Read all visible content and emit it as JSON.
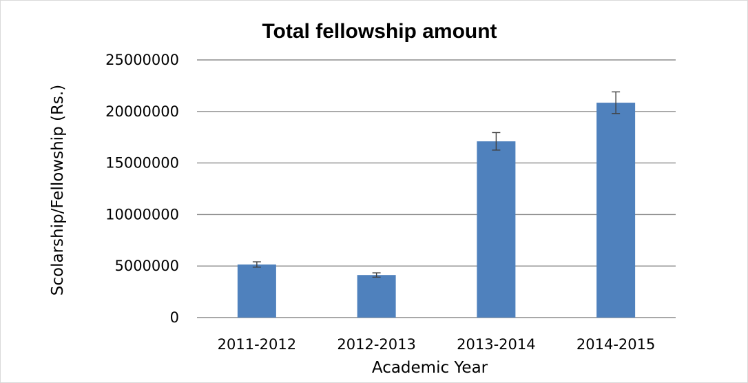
{
  "chart_data": {
    "type": "bar",
    "title": "Total fellowship amount",
    "xlabel": "Academic Year",
    "ylabel": "Scolarship/Fellowship (Rs.)",
    "categories": [
      "2011-2012",
      "2012-2013",
      "2013-2014",
      "2014-2015"
    ],
    "values": [
      5150000,
      4130000,
      17100000,
      20850000
    ],
    "error": [
      260000,
      210000,
      850000,
      1050000
    ],
    "ylim": [
      0,
      25000000
    ],
    "yticks": [
      0,
      5000000,
      10000000,
      15000000,
      20000000,
      25000000
    ],
    "ytick_labels": [
      "0",
      "5000000",
      "10000000",
      "15000000",
      "20000000",
      "25000000"
    ],
    "grid": true,
    "legend": "none",
    "bar_color": "#4f81bd",
    "error_bar_color": "#404040",
    "grid_color": "#8c8c8c"
  }
}
